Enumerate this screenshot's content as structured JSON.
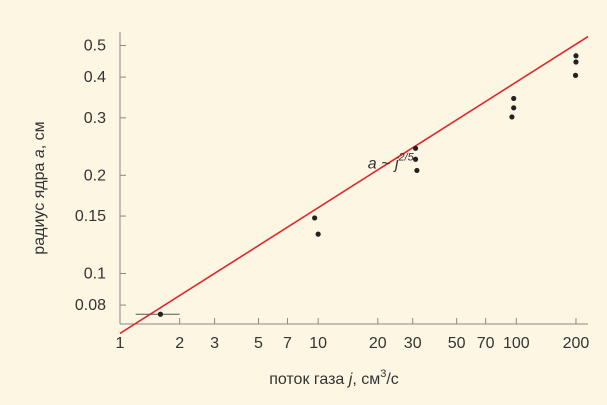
{
  "chart_data": {
    "type": "scatter",
    "xlabel_prefix": "поток газа ",
    "xlabel_var": "j",
    "xlabel_unit_base": ", см",
    "xlabel_unit_exp": "3",
    "xlabel_unit_tail": "/с",
    "ylabel_prefix": "радиус ядра ",
    "ylabel_var": "a",
    "ylabel_suffix": ", см",
    "x_scale": "log",
    "y_scale": "log",
    "xlim": [
      1,
      230
    ],
    "ylim": [
      0.07,
      0.55
    ],
    "x_ticks": [
      {
        "value": 1,
        "label": "1"
      },
      {
        "value": 2,
        "label": "2"
      },
      {
        "value": 3,
        "label": "3"
      },
      {
        "value": 5,
        "label": "5"
      },
      {
        "value": 7,
        "label": "7"
      },
      {
        "value": 10,
        "label": "10"
      },
      {
        "value": 20,
        "label": "20"
      },
      {
        "value": 30,
        "label": "30"
      },
      {
        "value": 50,
        "label": "50"
      },
      {
        "value": 70,
        "label": "70"
      },
      {
        "value": 100,
        "label": "100"
      },
      {
        "value": 200,
        "label": "200"
      }
    ],
    "y_ticks": [
      {
        "value": 0.08,
        "label": "0.08"
      },
      {
        "value": 0.1,
        "label": "0.1"
      },
      {
        "value": 0.15,
        "label": "0.15"
      },
      {
        "value": 0.2,
        "label": "0.2"
      },
      {
        "value": 0.3,
        "label": "0.3"
      },
      {
        "value": 0.4,
        "label": "0.4"
      },
      {
        "value": 0.5,
        "label": "0.5"
      }
    ],
    "points": [
      {
        "x": 1.6,
        "y": 0.075
      },
      {
        "x": 9.6,
        "y": 0.148
      },
      {
        "x": 10,
        "y": 0.132
      },
      {
        "x": 31,
        "y": 0.242
      },
      {
        "x": 31,
        "y": 0.224
      },
      {
        "x": 31.5,
        "y": 0.207
      },
      {
        "x": 97,
        "y": 0.344
      },
      {
        "x": 97,
        "y": 0.322
      },
      {
        "x": 95,
        "y": 0.302
      },
      {
        "x": 200,
        "y": 0.465
      },
      {
        "x": 200,
        "y": 0.445
      },
      {
        "x": 199,
        "y": 0.405
      }
    ],
    "error_bar": {
      "x_low": 1.2,
      "x_high": 2.0,
      "y": 0.075
    },
    "fit_line": {
      "x1": 1,
      "y1": 0.0655,
      "x2": 230,
      "y2": 0.5325,
      "color": "#e0262b"
    },
    "annotation": {
      "prefix": "a ~ ",
      "base": "j",
      "exponent": "2/5",
      "at": {
        "x": 20,
        "y": 0.225
      }
    },
    "colors": {
      "background": "#fdf6e3",
      "point": "#222222",
      "axis": "#888888",
      "text": "#333333"
    },
    "grid": false
  }
}
